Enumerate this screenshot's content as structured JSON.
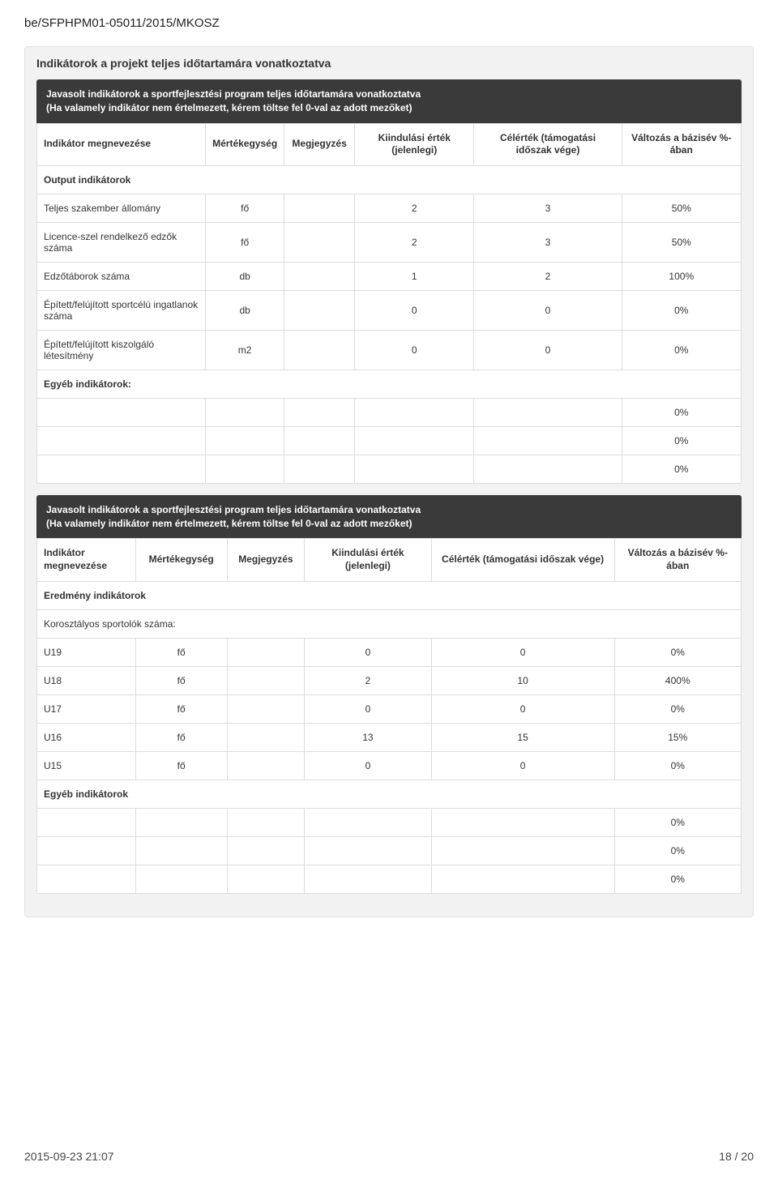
{
  "doc_id": "be/SFPHPM01-05011/2015/MKOSZ",
  "panel_title": "Indikátorok a projekt teljes időtartamára vonatkoztatva",
  "table1": {
    "header_dark_line1": "Javasolt indikátorok a sportfejlesztési program teljes időtartamára vonatkoztatva",
    "header_dark_line2": "(Ha valamely indikátor nem értelmezett, kérem töltse fel 0-val az adott mezőket)",
    "cols": {
      "name": "Indikátor megnevezése",
      "unit": "Mértékegység",
      "note": "Megjegyzés",
      "start": "Kiindulási érték (jelenlegi)",
      "target": "Célérték (támogatási időszak vége)",
      "change": "Változás a bázisév %-ában"
    },
    "section_output": "Output indikátorok",
    "rows_output": [
      {
        "name": "Teljes szakember állomány",
        "unit": "fő",
        "note": "",
        "start": "2",
        "target": "3",
        "change": "50%"
      },
      {
        "name": "Licence-szel rendelkező edzők száma",
        "unit": "fő",
        "note": "",
        "start": "2",
        "target": "3",
        "change": "50%"
      },
      {
        "name": "Edzőtáborok száma",
        "unit": "db",
        "note": "",
        "start": "1",
        "target": "2",
        "change": "100%"
      },
      {
        "name": "Épített/felújított sportcélú ingatlanok száma",
        "unit": "db",
        "note": "",
        "start": "0",
        "target": "0",
        "change": "0%"
      },
      {
        "name": "Épített/felújított kiszolgáló létesítmény",
        "unit": "m2",
        "note": "",
        "start": "0",
        "target": "0",
        "change": "0%"
      }
    ],
    "section_other": "Egyéb indikátorok:",
    "rows_other": [
      {
        "name": "",
        "unit": "",
        "note": "",
        "start": "",
        "target": "",
        "change": "0%"
      },
      {
        "name": "",
        "unit": "",
        "note": "",
        "start": "",
        "target": "",
        "change": "0%"
      },
      {
        "name": "",
        "unit": "",
        "note": "",
        "start": "",
        "target": "",
        "change": "0%"
      }
    ]
  },
  "table2": {
    "header_dark_line1": "Javasolt indikátorok a sportfejlesztési program teljes időtartamára vonatkoztatva",
    "header_dark_line2": "(Ha valamely indikátor nem értelmezett, kérem töltse fel 0-val az adott mezőket)",
    "cols": {
      "name": "Indikátor megnevezése",
      "unit": "Mértékegység",
      "note": "Megjegyzés",
      "start": "Kiindulási érték (jelenlegi)",
      "target": "Célérték (támogatási időszak vége)",
      "change": "Változás a bázisév %-ában"
    },
    "section_result": "Eredmény indikátorok",
    "section_age": "Korosztályos sportolók száma:",
    "rows_age": [
      {
        "name": "U19",
        "unit": "fő",
        "note": "",
        "start": "0",
        "target": "0",
        "change": "0%"
      },
      {
        "name": "U18",
        "unit": "fő",
        "note": "",
        "start": "2",
        "target": "10",
        "change": "400%"
      },
      {
        "name": "U17",
        "unit": "fő",
        "note": "",
        "start": "0",
        "target": "0",
        "change": "0%"
      },
      {
        "name": "U16",
        "unit": "fő",
        "note": "",
        "start": "13",
        "target": "15",
        "change": "15%"
      },
      {
        "name": "U15",
        "unit": "fő",
        "note": "",
        "start": "0",
        "target": "0",
        "change": "0%"
      }
    ],
    "section_other": "Egyéb indikátorok",
    "rows_other": [
      {
        "name": "",
        "unit": "",
        "note": "",
        "start": "",
        "target": "",
        "change": "0%"
      },
      {
        "name": "",
        "unit": "",
        "note": "",
        "start": "",
        "target": "",
        "change": "0%"
      },
      {
        "name": "",
        "unit": "",
        "note": "",
        "start": "",
        "target": "",
        "change": "0%"
      }
    ]
  },
  "footer": {
    "timestamp": "2015-09-23 21:07",
    "page": "18 / 20"
  }
}
